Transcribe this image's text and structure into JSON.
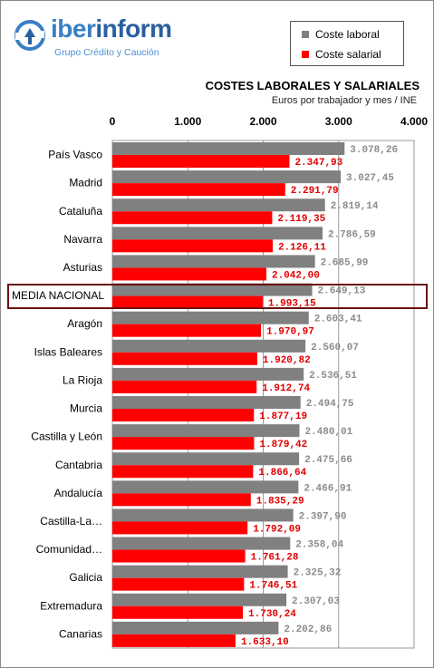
{
  "brand": {
    "name_part1": "iber",
    "name_part2": "inform",
    "tagline": "Grupo Crédito y Caución",
    "color": "#3b7fc4"
  },
  "legend": {
    "items": [
      {
        "label": "Coste laboral",
        "color": "#808080"
      },
      {
        "label": "Coste salarial",
        "color": "#ff0000"
      }
    ]
  },
  "chart_data": {
    "type": "bar",
    "orientation": "horizontal",
    "title": "COSTES LABORALES Y SALARIALES",
    "subtitle": "Euros por trabajador y mes / INE",
    "xlim": [
      0,
      4000
    ],
    "xticks": [
      "0",
      "1.000",
      "2.000",
      "3.000",
      "4.000"
    ],
    "grid": true,
    "legend_position": "top-right",
    "highlighted_category": "MEDIA NACIONAL",
    "categories": [
      "País Vasco",
      "Madrid",
      "Cataluña",
      "Navarra",
      "Asturias",
      "MEDIA NACIONAL",
      "Aragón",
      "Islas Baleares",
      "La Rioja",
      "Murcia",
      "Castilla y León",
      "Cantabria",
      "Andalucía",
      "Castilla-La…",
      "Comunidad…",
      "Galicia",
      "Extremadura",
      "Canarias"
    ],
    "series": [
      {
        "name": "Coste laboral",
        "color": "#808080",
        "values": [
          3078.26,
          3027.45,
          2819.14,
          2786.59,
          2685.99,
          2649.13,
          2603.41,
          2560.07,
          2536.51,
          2494.75,
          2480.01,
          2475.66,
          2466.91,
          2397.9,
          2358.04,
          2325.32,
          2307.03,
          2202.86
        ],
        "labels": [
          "3.078,26",
          "3.027,45",
          "2.819,14",
          "2.786,59",
          "2.685,99",
          "2.649,13",
          "2.603,41",
          "2.560,07",
          "2.536,51",
          "2.494,75",
          "2.480,01",
          "2.475,66",
          "2.466,91",
          "2.397,90",
          "2.358,04",
          "2.325,32",
          "2.307,03",
          "2.202,86"
        ]
      },
      {
        "name": "Coste salarial",
        "color": "#ff0000",
        "values": [
          2347.93,
          2291.79,
          2119.35,
          2126.11,
          2042.0,
          1993.15,
          1970.97,
          1920.82,
          1912.74,
          1877.19,
          1879.42,
          1866.64,
          1835.29,
          1792.09,
          1761.28,
          1746.51,
          1730.24,
          1633.1
        ],
        "labels": [
          "2.347,93",
          "2.291,79",
          "2.119,35",
          "2.126,11",
          "2.042,00",
          "1.993,15",
          "1.970,97",
          "1.920,82",
          "1.912,74",
          "1.877,19",
          "1.879,42",
          "1.866,64",
          "1.835,29",
          "1.792,09",
          "1.761,28",
          "1.746,51",
          "1.730,24",
          "1.633,10"
        ]
      }
    ]
  }
}
